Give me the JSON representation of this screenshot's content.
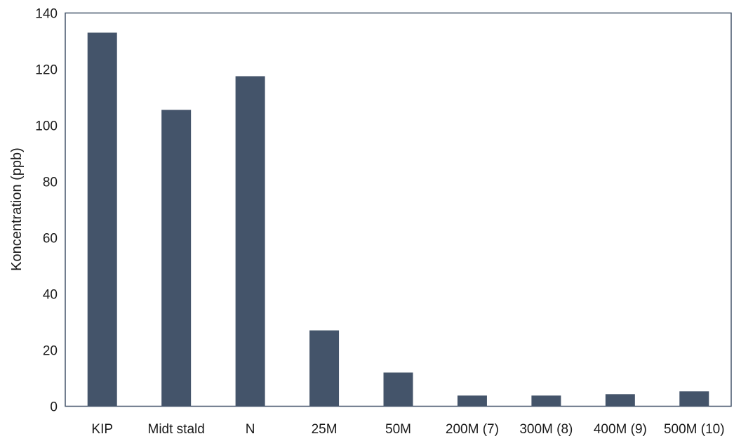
{
  "chart_data": {
    "type": "bar",
    "title": "",
    "xlabel": "",
    "ylabel": "Koncentration (ppb)",
    "ylim": [
      0,
      140
    ],
    "yticks": [
      0,
      20,
      40,
      60,
      80,
      100,
      120,
      140
    ],
    "categories": [
      "KIP",
      "Midt stald",
      "N",
      "25M",
      "50M",
      "200M (7)",
      "300M (8)",
      "400M (9)",
      "500M (10)"
    ],
    "values": [
      133,
      105.5,
      117.5,
      27,
      12,
      3.8,
      3.8,
      4.3,
      5.3
    ],
    "bar_color": "#44546a",
    "grid": false,
    "legend": "none"
  }
}
